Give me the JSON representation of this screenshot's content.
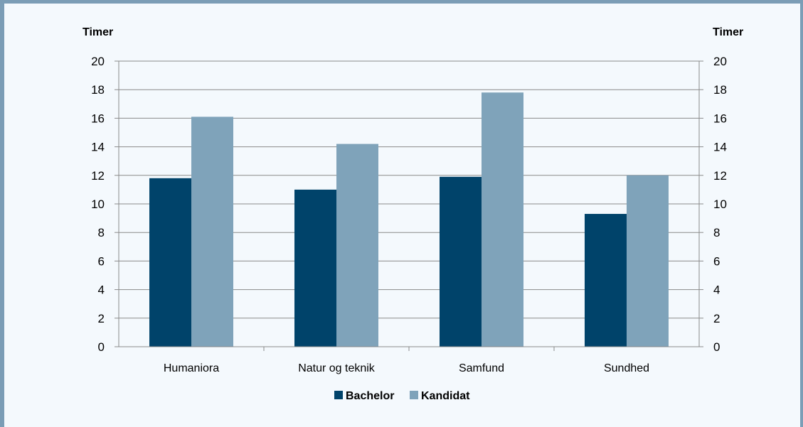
{
  "chart_data": {
    "type": "bar",
    "categories": [
      "Humaniora",
      "Natur og teknik",
      "Samfund",
      "Sundhed"
    ],
    "series": [
      {
        "name": "Bachelor",
        "values": [
          11.8,
          11.0,
          11.9,
          9.3
        ],
        "color": "#00436a"
      },
      {
        "name": "Kandidat",
        "values": [
          16.1,
          14.2,
          17.8,
          12.0
        ],
        "color": "#7fa3ba"
      }
    ],
    "ylabel_left": "Timer",
    "ylabel_right": "Timer",
    "ylim": [
      0,
      20
    ],
    "yticks": [
      "0",
      "2",
      "4",
      "6",
      "8",
      "10",
      "12",
      "14",
      "16",
      "18",
      "20"
    ],
    "grid": true,
    "legend_position": "bottom"
  }
}
